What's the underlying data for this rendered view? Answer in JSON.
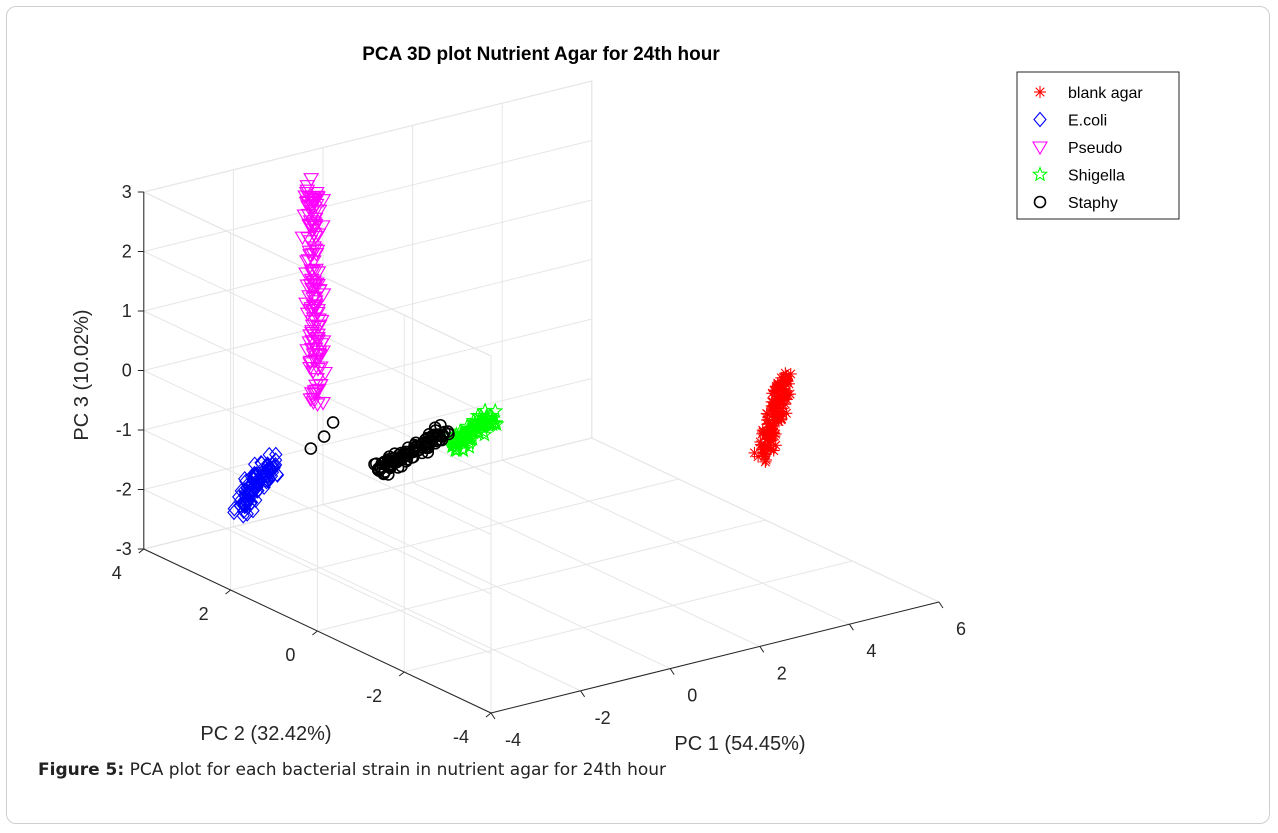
{
  "chart_data": {
    "type": "scatter",
    "projection": "3d",
    "title": "PCA 3D plot Nutrient Agar for 24th hour",
    "xlabel": "PC 1 (54.45%)",
    "ylabel": "PC 2 (32.42%)",
    "zlabel": "PC 3 (10.02%)",
    "xlim": [
      -4,
      6
    ],
    "ylim": [
      -4,
      4
    ],
    "zlim": [
      -3,
      3
    ],
    "xticks": [
      "-4",
      "-2",
      "0",
      "2",
      "4",
      "6"
    ],
    "yticks": [
      "-4",
      "-2",
      "0",
      "2",
      "4"
    ],
    "zticks": [
      "-3",
      "-2",
      "-1",
      "0",
      "1",
      "2",
      "3"
    ],
    "grid": true,
    "legend_position": "top-right",
    "series": [
      {
        "name": "blank agar",
        "marker": "asterisk",
        "color": "#ff0000",
        "cluster": {
          "from": [
            4.6,
            -1.4,
            -1.2
          ],
          "to": [
            5.6,
            -0.9,
            -0.2
          ],
          "count": 130,
          "spread": 0.07
        }
      },
      {
        "name": "E.coli",
        "marker": "diamond",
        "color": "#0000ff",
        "cluster": {
          "from": [
            -3.6,
            2.2,
            -1.8
          ],
          "to": [
            -3.0,
            2.1,
            -1.1
          ],
          "count": 110,
          "spread": 0.08
        }
      },
      {
        "name": "Pseudo",
        "marker": "triangle-down",
        "color": "#ff00ff",
        "cluster": {
          "from": [
            -2.6,
            1.5,
            0.0
          ],
          "to": [
            -1.7,
            2.5,
            3.2
          ],
          "count": 140,
          "spread": 0.07
        }
      },
      {
        "name": "Shigella",
        "marker": "pentagram",
        "color": "#00ff00",
        "cluster": {
          "from": [
            -0.4,
            0.6,
            -0.8
          ],
          "to": [
            0.3,
            0.4,
            -0.3
          ],
          "count": 90,
          "spread": 0.06
        }
      },
      {
        "name": "Staphy",
        "marker": "circle",
        "color": "#000000",
        "cluster": {
          "from": [
            -1.5,
            1.2,
            -1.2
          ],
          "to": [
            -0.4,
            0.8,
            -0.6
          ],
          "count": 100,
          "spread": 0.06
        },
        "outliers": [
          [
            -2.5,
            1.7,
            -0.8
          ],
          [
            -2.3,
            1.6,
            -0.6
          ],
          [
            -2.1,
            1.6,
            -0.4
          ]
        ]
      }
    ]
  },
  "caption": {
    "label": "Figure 5:",
    "text": " PCA plot for each bacterial strain in nutrient agar for 24th hour"
  }
}
